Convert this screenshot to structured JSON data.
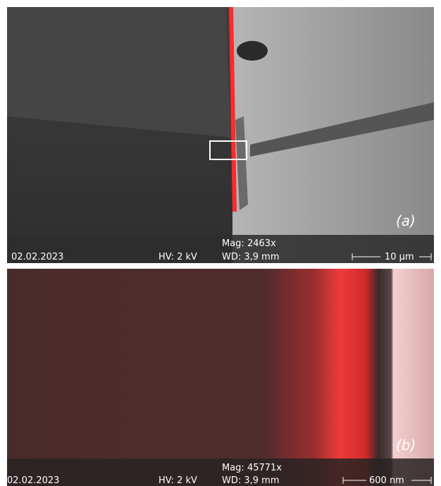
{
  "panels": [
    {
      "label": "(a)",
      "date": "02.02.2023",
      "hv": "HV: 2 kV",
      "mag": "Mag: 2463x",
      "wd": "WD: 3,9 mm",
      "scale": "10 µm"
    },
    {
      "label": "(b)",
      "date": "02.02.2023",
      "hv": "HV: 2 kV",
      "mag": "Mag: 45771x",
      "wd": "WD: 3,9 mm",
      "scale": "600 nm"
    }
  ]
}
